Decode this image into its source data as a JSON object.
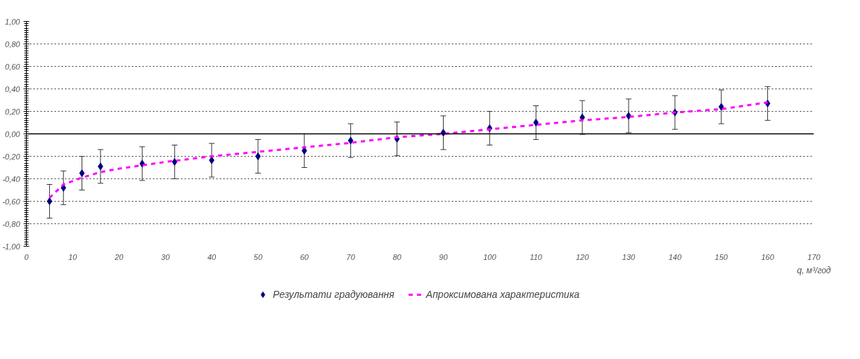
{
  "chart_data": {
    "type": "scatter",
    "xlabel": "q, м³/год",
    "x": [
      5,
      8,
      12,
      16,
      25,
      32,
      40,
      50,
      60,
      70,
      80,
      90,
      100,
      110,
      120,
      130,
      140,
      150,
      160
    ],
    "series": [
      {
        "name": "Результати градуювання",
        "type": "scatter",
        "color": "#000080",
        "marker": "diamond",
        "values": [
          -0.6,
          -0.48,
          -0.35,
          -0.29,
          -0.265,
          -0.25,
          -0.235,
          -0.2,
          -0.15,
          -0.06,
          -0.045,
          0.01,
          0.05,
          0.1,
          0.146,
          0.16,
          0.19,
          0.24,
          0.27
        ],
        "errors": [
          0.15,
          0.15,
          0.15,
          0.15,
          0.15,
          0.15,
          0.15,
          0.15,
          0.15,
          0.15,
          0.15,
          0.15,
          0.15,
          0.15,
          0.15,
          0.15,
          0.15,
          0.15,
          0.15
        ]
      },
      {
        "name": "Апроксимована характеристика",
        "type": "line",
        "color": "#ff00ff",
        "line_style": "dashed",
        "marker": "none",
        "x": [
          5,
          8,
          12,
          16,
          20,
          25,
          30,
          40,
          50,
          60,
          70,
          80,
          90,
          100,
          110,
          120,
          130,
          140,
          150,
          160
        ],
        "values": [
          -0.57,
          -0.45,
          -0.39,
          -0.34,
          -0.31,
          -0.28,
          -0.25,
          -0.2,
          -0.16,
          -0.12,
          -0.08,
          -0.03,
          0.0,
          0.04,
          0.08,
          0.12,
          0.15,
          0.19,
          0.22,
          0.28
        ]
      }
    ],
    "xlim": [
      0,
      170
    ],
    "xticks": [
      0,
      10,
      20,
      30,
      40,
      50,
      60,
      70,
      80,
      90,
      100,
      110,
      120,
      130,
      140,
      150,
      160,
      170
    ],
    "ylim": [
      -1.0,
      1.0
    ],
    "yticks": [
      {
        "value": -1.0,
        "label": "-1,00"
      },
      {
        "value": -0.8,
        "label": "-0,80"
      },
      {
        "value": -0.6,
        "label": "-0,60"
      },
      {
        "value": -0.4,
        "label": "-0,40"
      },
      {
        "value": -0.2,
        "label": "-0,20"
      },
      {
        "value": 0.0,
        "label": "0,00"
      },
      {
        "value": 0.2,
        "label": "0,20"
      },
      {
        "value": 0.4,
        "label": "0,40"
      },
      {
        "value": 0.6,
        "label": "0,60"
      },
      {
        "value": 0.8,
        "label": "0,80"
      },
      {
        "value": 1.0,
        "label": "1,00"
      }
    ],
    "ref_lines": [
      {
        "axis": "y",
        "value": 0,
        "label": null,
        "color": "#000000"
      }
    ],
    "grid": "y",
    "legend": "bottom"
  }
}
